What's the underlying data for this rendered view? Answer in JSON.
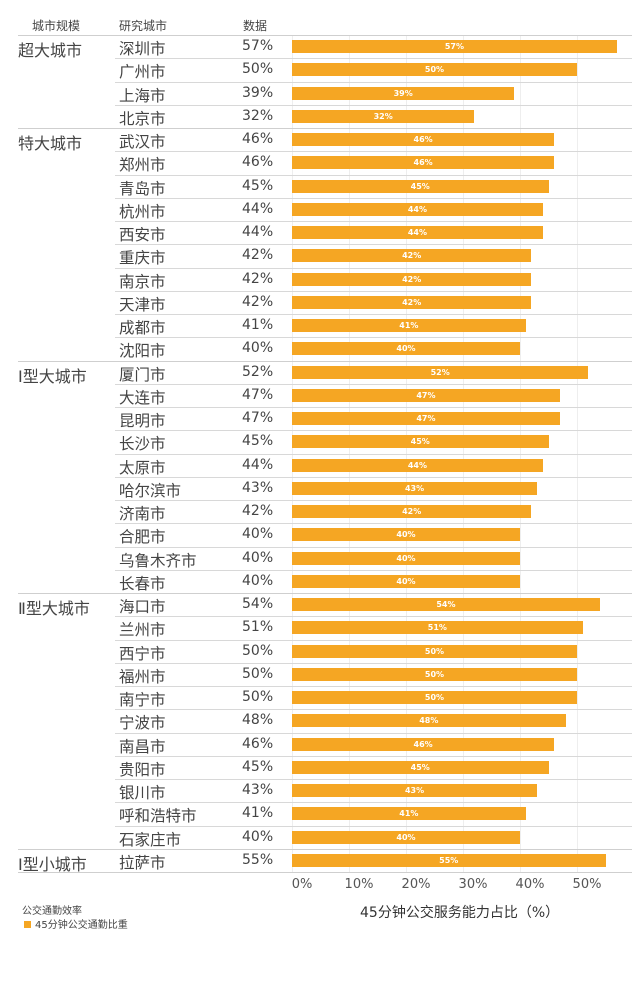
{
  "headers": {
    "scale": "城市规模",
    "city": "研究城市",
    "value": "数据"
  },
  "chart_data": {
    "type": "bar",
    "title": "",
    "xlabel": "45分钟公交服务能力占比（%）",
    "xlim": [
      0,
      57
    ],
    "xticks": [
      "0%",
      "10%",
      "20%",
      "30%",
      "40%",
      "50%"
    ],
    "xtick_values": [
      0,
      10,
      20,
      30,
      40,
      50
    ],
    "legend": {
      "title": "公交通勤效率",
      "entries": [
        "45分钟公交通勤比重"
      ],
      "placement": "bottom-left"
    },
    "groups": [
      {
        "name": "超大城市",
        "cities": [
          "深圳市",
          "广州市",
          "上海市",
          "北京市"
        ],
        "values": [
          57,
          50,
          39,
          32
        ]
      },
      {
        "name": "特大城市",
        "cities": [
          "武汉市",
          "郑州市",
          "青岛市",
          "杭州市",
          "西安市",
          "重庆市",
          "南京市",
          "天津市",
          "成都市",
          "沈阳市"
        ],
        "values": [
          46,
          46,
          45,
          44,
          44,
          42,
          42,
          42,
          41,
          40
        ]
      },
      {
        "name": "Ⅰ型大城市",
        "cities": [
          "厦门市",
          "大连市",
          "昆明市",
          "长沙市",
          "太原市",
          "哈尔滨市",
          "济南市",
          "合肥市",
          "乌鲁木齐市",
          "长春市"
        ],
        "values": [
          52,
          47,
          47,
          45,
          44,
          43,
          42,
          40,
          40,
          40
        ]
      },
      {
        "name": "Ⅱ型大城市",
        "cities": [
          "海口市",
          "兰州市",
          "西宁市",
          "福州市",
          "南宁市",
          "宁波市",
          "南昌市",
          "贵阳市",
          "银川市",
          "呼和浩特市",
          "石家庄市"
        ],
        "values": [
          54,
          51,
          50,
          50,
          50,
          48,
          46,
          45,
          43,
          41,
          40
        ]
      },
      {
        "name": "Ⅰ型小城市",
        "cities": [
          "拉萨市"
        ],
        "values": [
          55
        ]
      }
    ],
    "bar_color": "#F5A623"
  }
}
